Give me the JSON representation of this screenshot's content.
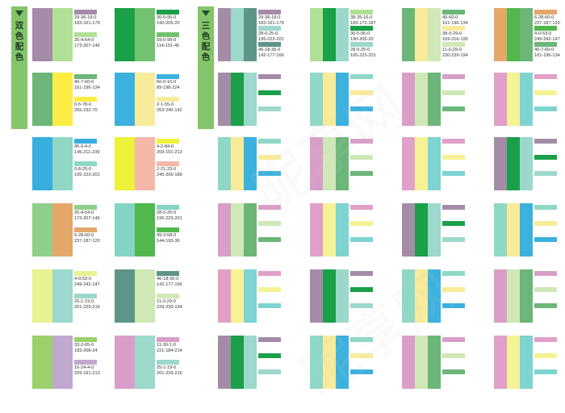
{
  "sections": {
    "two_color": {
      "label": "双色配色",
      "chars": [
        "双",
        "色",
        "配",
        "色"
      ]
    },
    "three_color": {
      "label": "三色配色",
      "chars": [
        "三",
        "色",
        "配",
        "色"
      ]
    }
  },
  "watermark": "昵享网",
  "chart_data": {
    "type": "table",
    "description": "Color scheme swatch sheet (CMYK / RGB codes)",
    "two_color_schemes": [
      {
        "colors": [
          {
            "hex": "#a48ca8",
            "cmyk": "29-36-18-0",
            "rgb": "183-161-179"
          },
          {
            "hex": "#b0e096",
            "cmyk": "35-4-54-0",
            "rgb": "173-207-146"
          }
        ]
      },
      {
        "colors": [
          {
            "hex": "#1aa048",
            "cmyk": "30-5-95-0",
            "rgb": "190-205-20"
          },
          {
            "hex": "#72c272",
            "cmyk": "59-0-99-0",
            "rgb": "114-191-45"
          }
        ]
      },
      {
        "colors": [
          {
            "hex": "#6cb67a",
            "cmyk": "40-7-60-0",
            "rgb": "161-196-134"
          },
          {
            "hex": "#fcec44",
            "cmyk": "0-5-78-0",
            "rgb": "255-232-70"
          }
        ]
      },
      {
        "colors": [
          {
            "hex": "#3cb1de",
            "cmyk": "60-0-10-0",
            "rgb": "89-198-224"
          },
          {
            "hex": "#f8eb9a",
            "cmyk": "2-1-55-0",
            "rgb": "253-240-142"
          }
        ]
      },
      {
        "colors": [
          {
            "hex": "#38aee0",
            "cmyk": "45-0-4-0",
            "rgb": "145-211-239"
          },
          {
            "hex": "#8fd8c6",
            "cmyk": "0-8-25-0",
            "rgb": "195-223-201"
          }
        ]
      },
      {
        "colors": [
          {
            "hex": "#eef238",
            "cmyk": "4-2-84-0",
            "rgb": "209-191-213"
          },
          {
            "hex": "#f4b8a8",
            "cmyk": "2-21-23-0",
            "rgb": "245-206-186"
          }
        ]
      },
      {
        "colors": [
          {
            "hex": "#8fcf8a",
            "cmyk": "35-4-54-0",
            "rgb": "173-207-146"
          },
          {
            "hex": "#e4a76a",
            "cmyk": "6-28-60-0",
            "rgb": "237-187-120"
          }
        ]
      },
      {
        "colors": [
          {
            "hex": "#84d4c4",
            "cmyk": "28-0-25-0",
            "rgb": "195-223-201"
          },
          {
            "hex": "#50b84c",
            "cmyk": "49-3-58-0",
            "rgb": "144-193-36"
          }
        ]
      },
      {
        "colors": [
          {
            "hex": "#e8f290",
            "cmyk": "4-0-53-0",
            "rgb": "249-242-147"
          },
          {
            "hex": "#9cd8cc",
            "cmyk": "25-1-19-0",
            "rgb": "201-229-216"
          }
        ]
      },
      {
        "colors": [
          {
            "hex": "#5f9588",
            "cmyk": "46-18-36-0",
            "rgb": "142-177-166"
          },
          {
            "hex": "#cfe8b6",
            "cmyk": "11-0-29-0",
            "rgb": "229-239-194"
          }
        ]
      },
      {
        "colors": [
          {
            "hex": "#9bd06a",
            "cmyk": "33-2-65-0",
            "rgb": "183-208-24"
          },
          {
            "hex": "#c1a8cf",
            "cmyk": "16-24-4-0",
            "rgb": "209-191-213"
          }
        ]
      },
      {
        "colors": [
          {
            "hex": "#d89ec8",
            "cmyk": "11-30-1-0",
            "rgb": "221-184-214"
          },
          {
            "hex": "#9cd8cc",
            "cmyk": "25-1-19-0",
            "rgb": "201-229-216"
          }
        ]
      }
    ],
    "three_color_schemes_row1": [
      {
        "colors": [
          {
            "hex": "#a48ca8",
            "cmyk": "29-36-18-0",
            "rgb": "183-161-179"
          },
          {
            "hex": "#9cd8cc",
            "cmyk": "28-0-25-0",
            "rgb": "195-223-201"
          },
          {
            "hex": "#5f9588",
            "cmyk": "46-18-36-0",
            "rgb": "142-177-166"
          }
        ]
      },
      {
        "colors": [
          {
            "hex": "#b0e096",
            "cmyk": "38-35-16-0",
            "rgb": "183-172-187"
          },
          {
            "hex": "#1aa048",
            "cmyk": "30-5-95-0",
            "rgb": "190-205-20"
          },
          {
            "hex": "#9cd8cc",
            "cmyk": "28-0-25-0",
            "rgb": "165-223-201"
          }
        ]
      },
      {
        "colors": [
          {
            "hex": "#6cb67a",
            "cmyk": "40-60-0",
            "rgb": "161-196-134"
          },
          {
            "hex": "#f8eb9a",
            "cmyk": "38-0-29-0",
            "rgb": "169-216-195"
          },
          {
            "hex": "#cfe8b6",
            "cmyk": "11-0-29-0",
            "rgb": "230-239-194"
          }
        ]
      },
      {
        "colors": [
          {
            "hex": "#e4a76a",
            "cmyk": "6-28-60-0",
            "rgb": "237-187-120"
          },
          {
            "hex": "#50b84c",
            "cmyk": "4-0-53-0",
            "rgb": "249-242-147"
          },
          {
            "hex": "#6cb67a",
            "cmyk": "40-7-60-0",
            "rgb": "161-196-134"
          }
        ]
      }
    ]
  }
}
